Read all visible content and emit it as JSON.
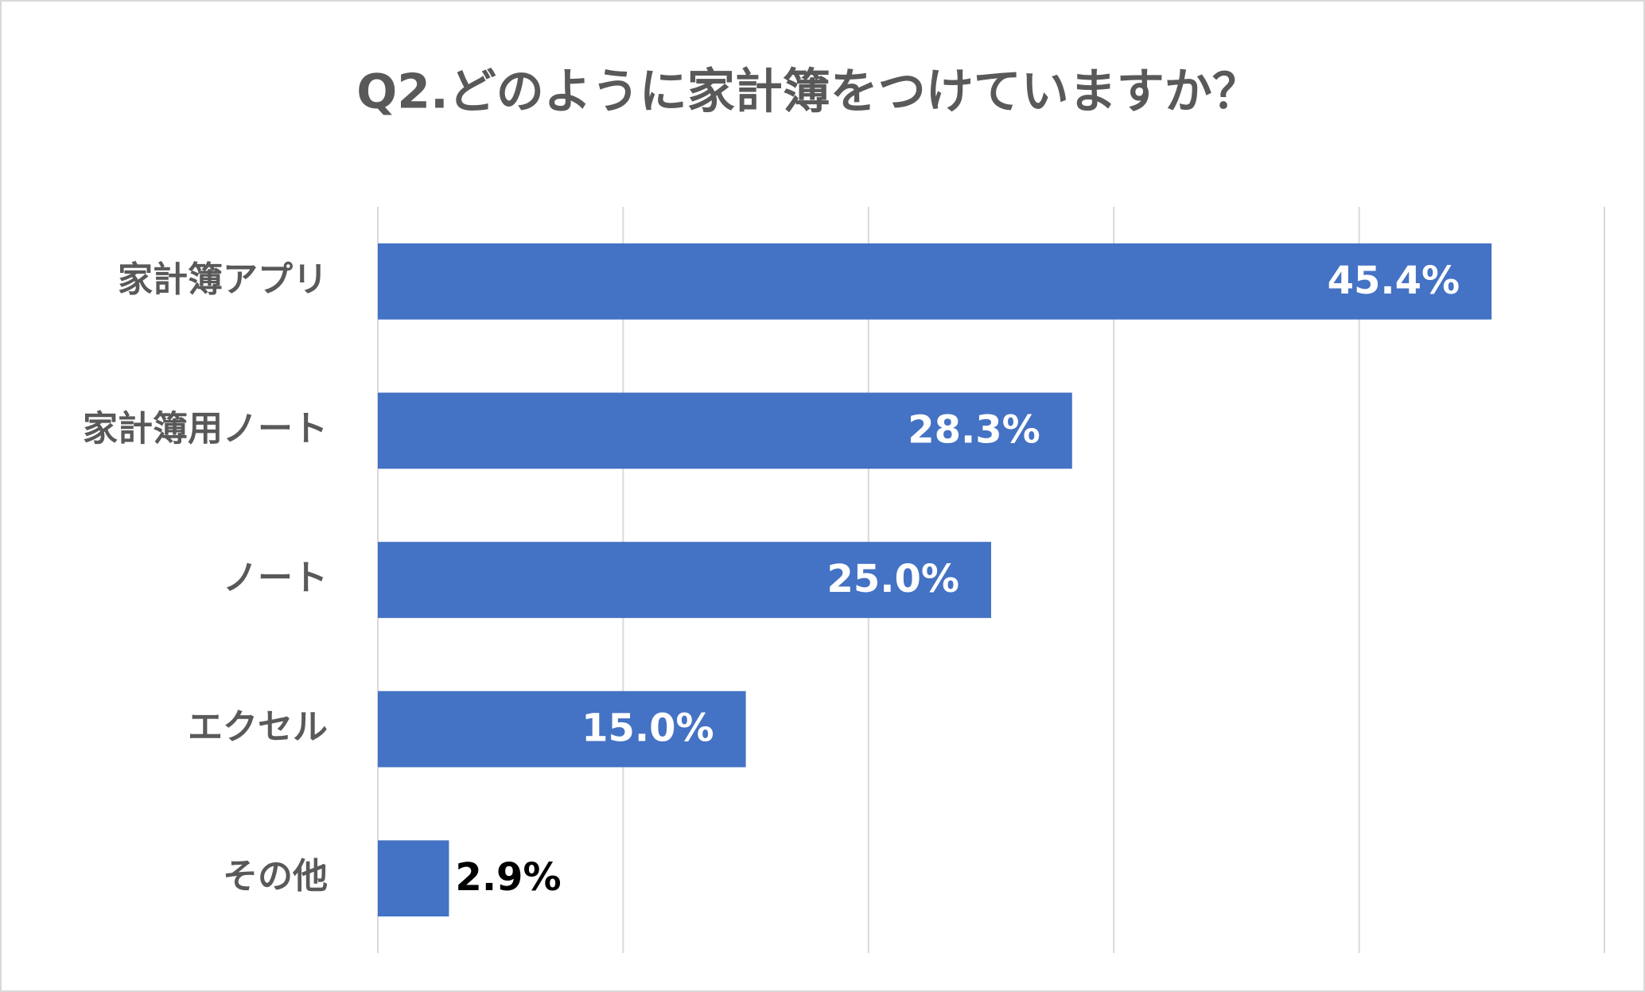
{
  "chart_data": {
    "type": "barh",
    "title": "Q2.どのように家計簿をつけていますか？",
    "categories": [
      "家計簿アプリ",
      "家計簿用ノート",
      "ノート",
      "エクセル",
      "その他"
    ],
    "values": [
      45.4,
      28.3,
      25.0,
      15.0,
      2.9
    ],
    "value_labels": [
      "45.4%",
      "28.3%",
      "25.0%",
      "15.0%",
      "2.9%"
    ],
    "color": "#4472c4",
    "xlim": [
      0,
      50
    ],
    "xticks": [
      0,
      10,
      20,
      30,
      40,
      50
    ],
    "grid": true
  }
}
